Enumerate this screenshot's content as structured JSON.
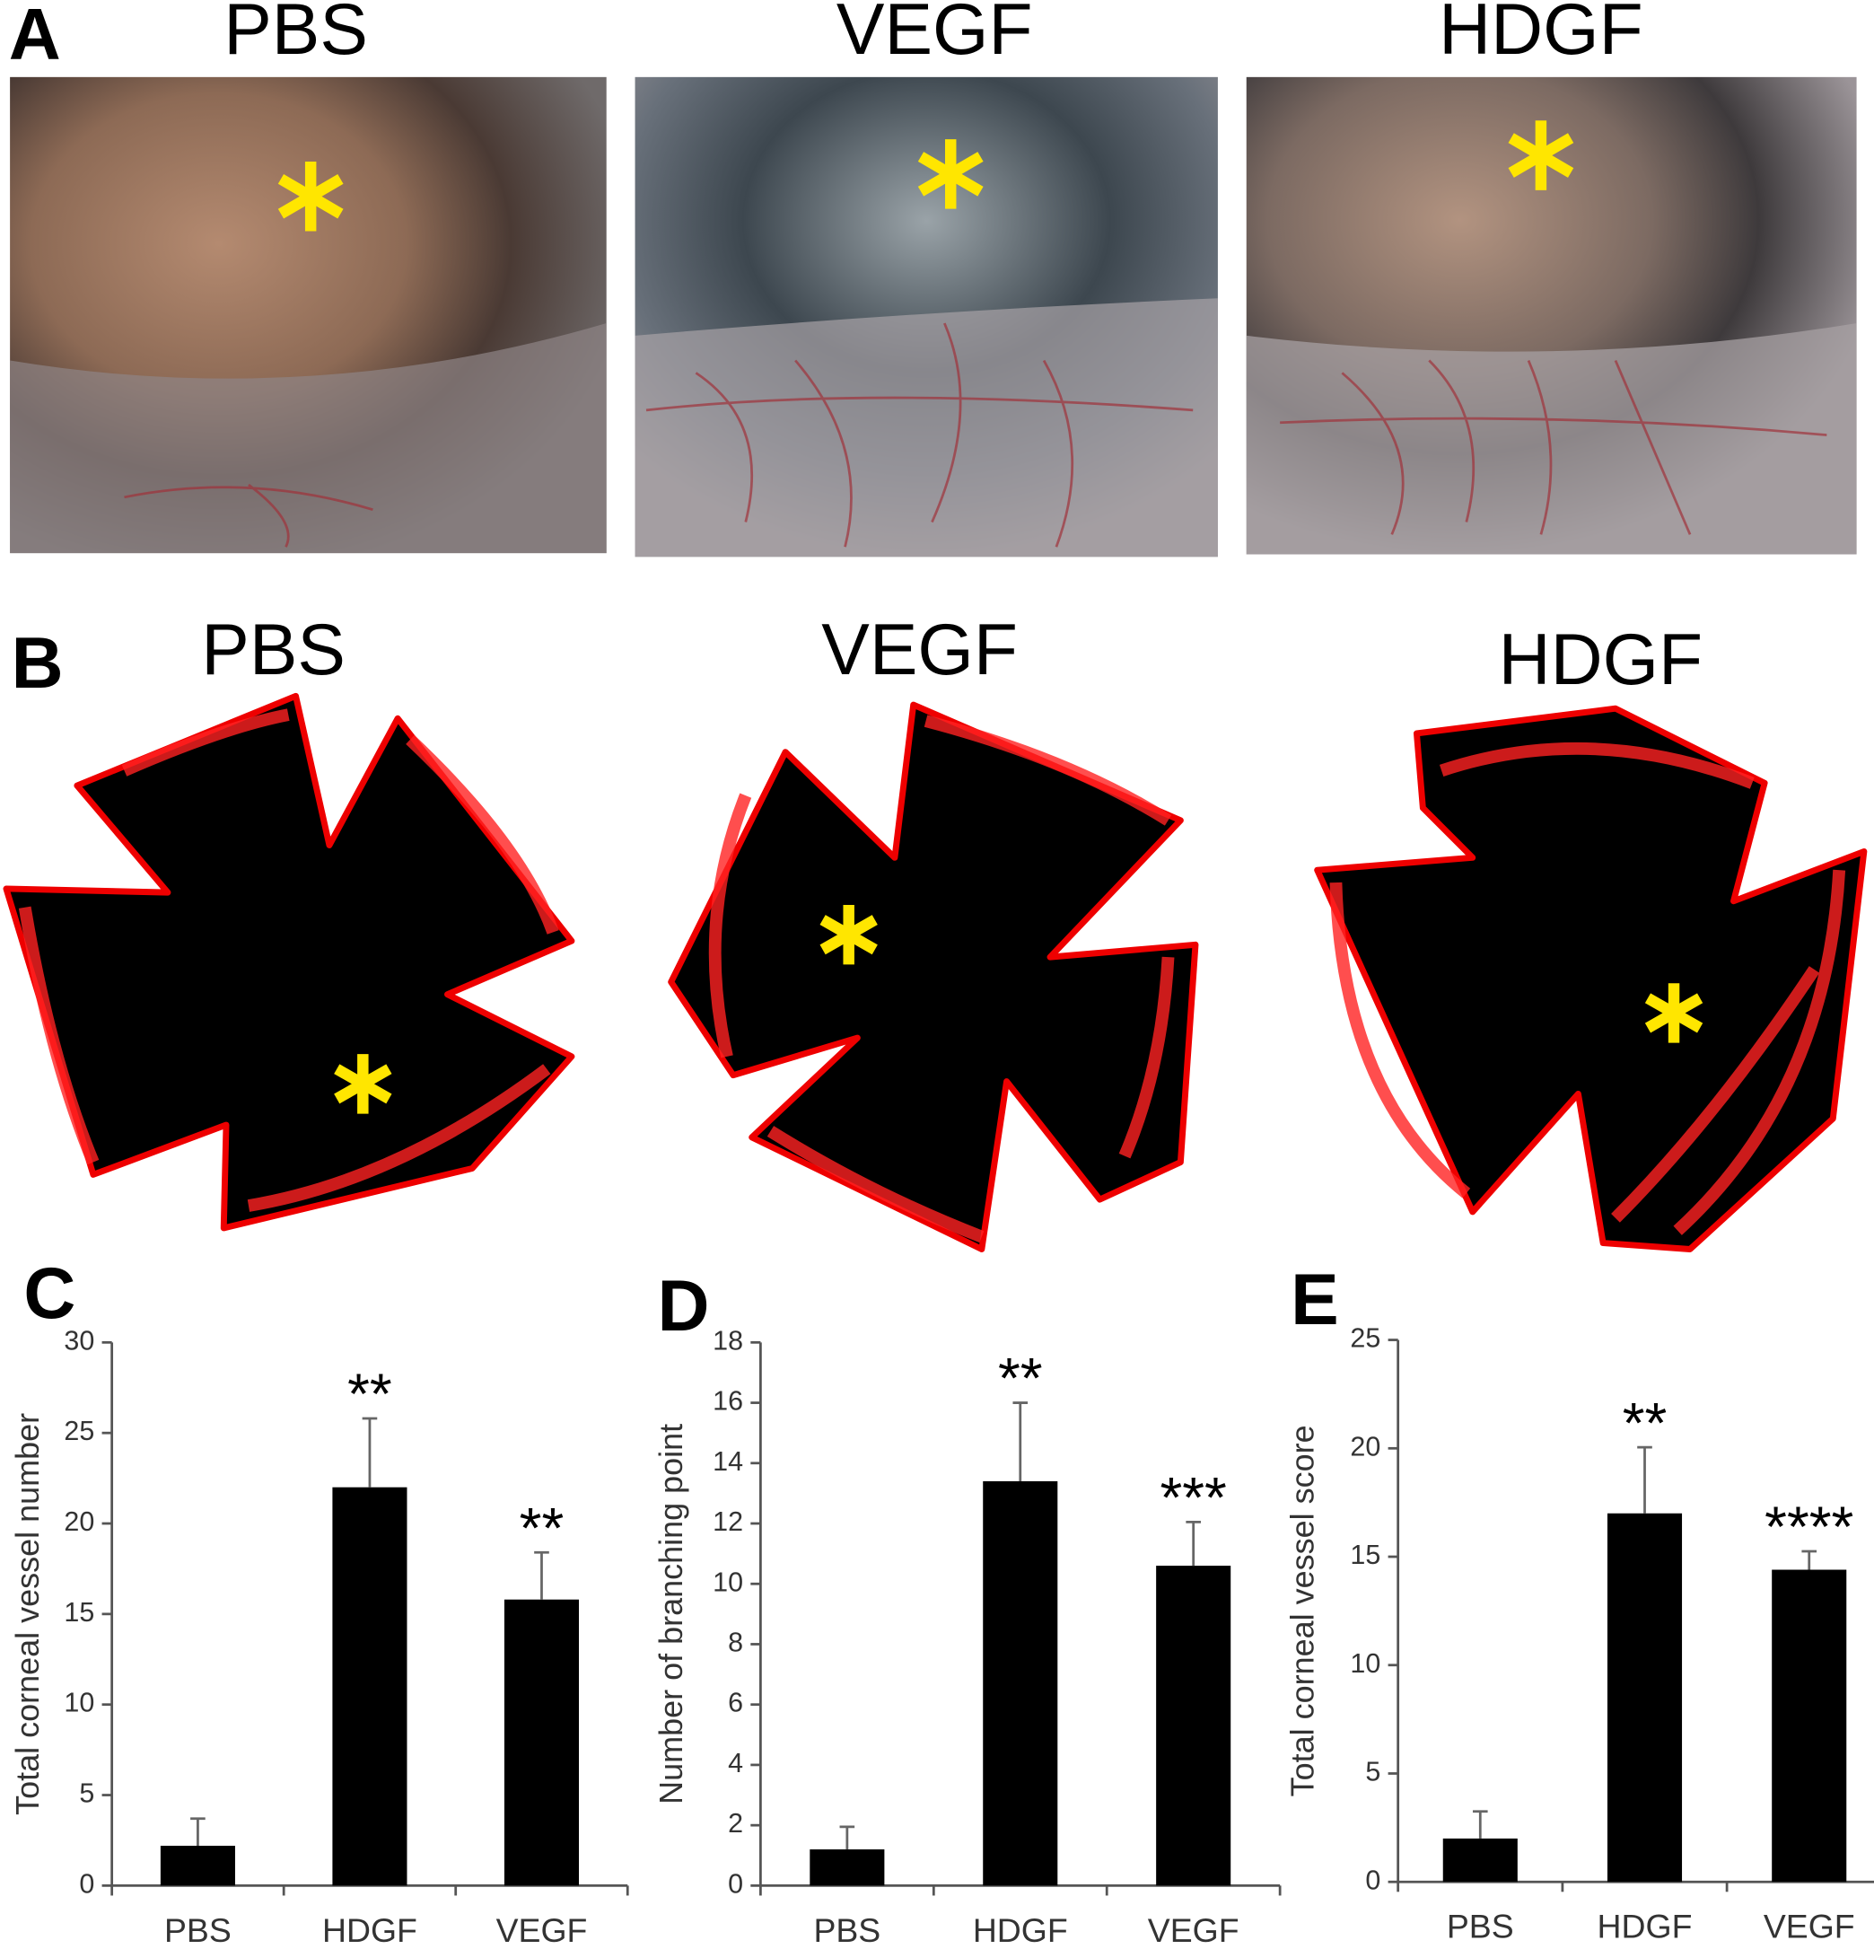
{
  "panels": [
    {
      "label": "A",
      "titles": [
        "PBS",
        "VEGF",
        "HDGF"
      ]
    },
    {
      "label": "B",
      "titles": [
        "PBS",
        "VEGF",
        "HDGF"
      ]
    }
  ],
  "chart_data": [
    {
      "type": "bar",
      "panel_label": "C",
      "y_label": "Total corneal vessel number",
      "categories": [
        "PBS",
        "HDGF",
        "VEGF"
      ],
      "values": [
        2.2,
        22,
        15.8
      ],
      "errors": [
        1.5,
        3.8,
        2.6
      ],
      "significance": [
        null,
        "**",
        "**"
      ],
      "color": "#000000",
      "ylim": [
        0,
        30
      ],
      "yticks": [
        0,
        5,
        10,
        15,
        20,
        25,
        30
      ]
    },
    {
      "type": "bar",
      "panel_label": "D",
      "y_label": "Number of branching point",
      "categories": [
        "PBS",
        "HDGF",
        "VEGF"
      ],
      "values": [
        1.2,
        13.4,
        10.6
      ],
      "errors": [
        0.75,
        2.6,
        1.45
      ],
      "significance": [
        null,
        "**",
        "***"
      ],
      "color": "#000000",
      "ylim": [
        0,
        18
      ],
      "yticks": [
        0,
        2,
        4,
        6,
        8,
        10,
        12,
        14,
        16,
        18
      ]
    },
    {
      "type": "bar",
      "panel_label": "E",
      "y_label": "Total corneal vessel score",
      "categories": [
        "PBS",
        "HDGF",
        "VEGF"
      ],
      "values": [
        2.0,
        17.0,
        14.4
      ],
      "errors": [
        1.25,
        3.05,
        0.85
      ],
      "significance": [
        null,
        "**",
        "****"
      ],
      "color": "#000000",
      "ylim": [
        0,
        25
      ],
      "yticks": [
        0,
        5,
        10,
        15,
        20,
        25
      ]
    }
  ]
}
